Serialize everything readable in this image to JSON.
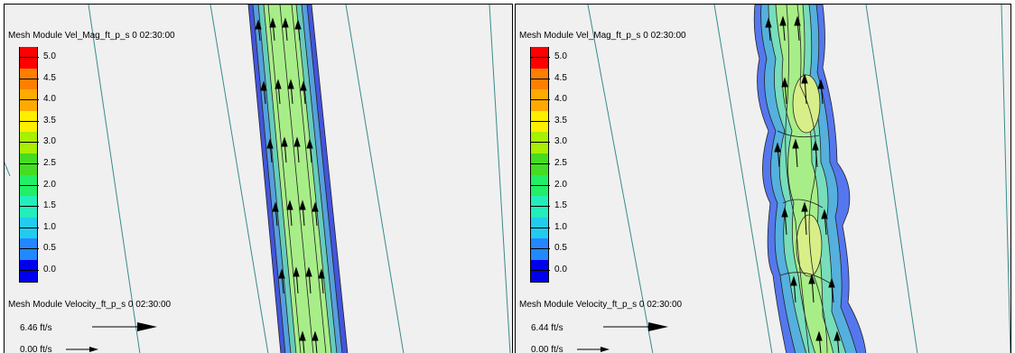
{
  "panels": [
    {
      "legend_title": "Mesh Module Vel_Mag_ft_p_s 0 02:30:00",
      "velocity_title": "Mesh Module Velocity_ft_p_s 0 02:30:00",
      "velocity_max": "6.46 ft/s",
      "velocity_min": "0.00 ft/s"
    },
    {
      "legend_title": "Mesh Module Vel_Mag_ft_p_s 0 02:30:00",
      "velocity_title": "Mesh Module Velocity_ft_p_s 0 02:30:00",
      "velocity_max": "6.44 ft/s",
      "velocity_min": "0.00 ft/s"
    }
  ],
  "legend": [
    {
      "label": "5.0",
      "color": "#ff0000"
    },
    {
      "label": "4.5",
      "color": "#ff7f00"
    },
    {
      "label": "4.0",
      "color": "#ffaa00"
    },
    {
      "label": "3.5",
      "color": "#ffee00"
    },
    {
      "label": "3.0",
      "color": "#aaee00"
    },
    {
      "label": "2.5",
      "color": "#44dd22"
    },
    {
      "label": "2.0",
      "color": "#22ee66"
    },
    {
      "label": "1.5",
      "color": "#22eebb"
    },
    {
      "label": "1.0",
      "color": "#22ccee"
    },
    {
      "label": "0.5",
      "color": "#2288ff"
    },
    {
      "label": "0.0",
      "color": "#0000ee"
    }
  ],
  "colors": {
    "background": "#f0f0f0",
    "mesh_line": "#3a8a8a",
    "channel_edge": "#4455dd",
    "channel_mid": "#66aadd",
    "channel_core": "#a8ee88",
    "channel_peak": "#d8ee88"
  }
}
